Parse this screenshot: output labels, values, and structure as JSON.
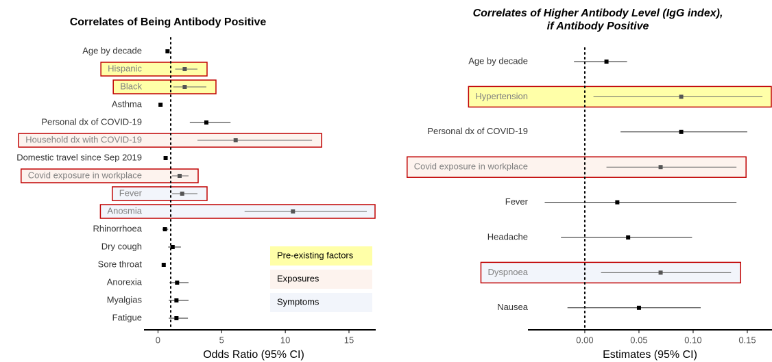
{
  "legend": [
    {
      "name": "Pre-existing factors",
      "color": "#ffffa8"
    },
    {
      "name": "Exposures",
      "color": "#fdf3ee"
    },
    {
      "name": "Symptoms",
      "color": "#f2f5fb"
    }
  ],
  "chart_data": [
    {
      "type": "forest",
      "title": [
        "Correlates of Being Antibody Positive"
      ],
      "xlabel": "Odds Ratio (95% CI)",
      "categories": [
        "Age by decade",
        "Hispanic",
        "Black",
        "Asthma",
        "Personal dx of COVID-19",
        "Household dx with COVID-19",
        "Domestic travel since Sep 2019",
        "Covid exposure in workplace",
        "Fever",
        "Anosmia",
        "Rhinorrhoea",
        "Dry cough",
        "Sore throat",
        "Anorexia",
        "Myalgias",
        "Fatigue"
      ],
      "values": [
        0.75,
        2.1,
        2.1,
        0.2,
        3.8,
        6.1,
        0.6,
        1.7,
        1.9,
        10.6,
        0.55,
        1.15,
        0.45,
        1.5,
        1.45,
        1.45
      ],
      "lower": [
        0.7,
        1.35,
        1.2,
        0.15,
        2.5,
        3.1,
        0.55,
        1.1,
        1.1,
        6.8,
        0.35,
        0.8,
        0.4,
        0.9,
        0.85,
        0.85
      ],
      "upper": [
        0.8,
        3.1,
        3.8,
        0.3,
        5.7,
        12.1,
        0.7,
        2.4,
        3.1,
        16.4,
        0.8,
        1.8,
        0.55,
        2.4,
        2.4,
        2.35
      ],
      "groups": [
        null,
        0,
        0,
        null,
        null,
        1,
        null,
        1,
        2,
        2,
        null,
        null,
        null,
        null,
        null,
        null
      ],
      "xlim": [
        -1.1,
        17.1
      ],
      "xticks": [
        0,
        5,
        10,
        15
      ],
      "ref_line": 1
    },
    {
      "type": "forest",
      "title": [
        "Correlates of Higher Antibody Level (IgG index),",
        "if Antibody Positive"
      ],
      "xlabel": "Estimates (95% CI)",
      "categories": [
        "Age by decade",
        "Hypertension",
        "Personal dx of COVID-19",
        "Covid exposure in workplace",
        "Fever",
        "Headache",
        "Dyspnoea",
        "Nausea"
      ],
      "values": [
        0.02,
        0.089,
        0.089,
        0.07,
        0.03,
        0.04,
        0.07,
        0.05
      ],
      "lower": [
        -0.01,
        0.008,
        0.033,
        0.02,
        -0.037,
        -0.022,
        0.015,
        -0.016
      ],
      "upper": [
        0.039,
        0.164,
        0.15,
        0.14,
        0.14,
        0.099,
        0.135,
        0.107
      ],
      "groups": [
        null,
        0,
        null,
        1,
        null,
        null,
        2,
        null
      ],
      "xlim": [
        -0.0525,
        0.1728
      ],
      "xticks": [
        {
          "value": 0,
          "label": "0.00"
        },
        {
          "value": 0.05,
          "label": "0.05"
        },
        {
          "value": 0.1,
          "label": "0.10"
        },
        {
          "value": 0.15,
          "label": "0.15"
        }
      ],
      "ref_line": 0
    }
  ]
}
